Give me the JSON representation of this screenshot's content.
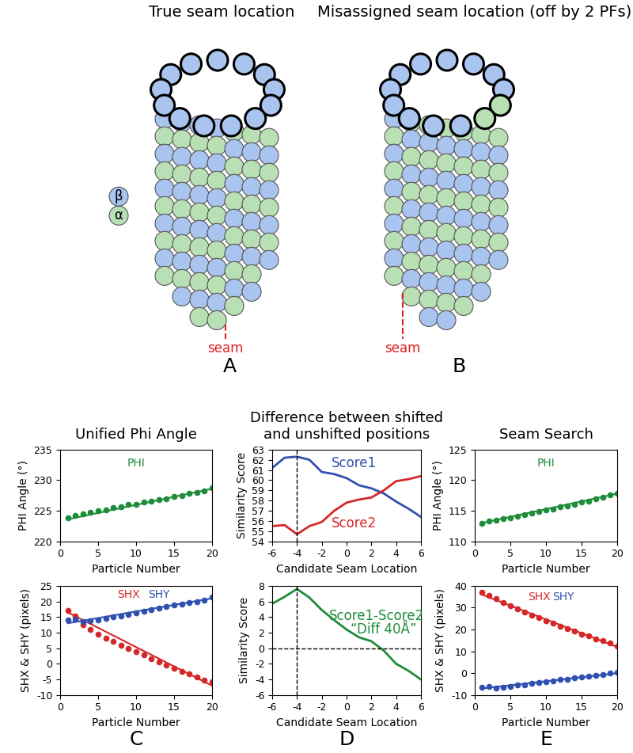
{
  "diagram": {
    "panels": [
      {
        "title": "True seam location",
        "seam_label": "seam",
        "letter": "A"
      },
      {
        "title": "Misassigned seam location (off by 2 PFs)",
        "seam_label": "seam",
        "letter": "B"
      }
    ],
    "subunit_key": [
      "β",
      "α"
    ]
  },
  "chart_data": [
    {
      "type": "scatter",
      "title": "Unified Phi Angle",
      "xlabel": "Particle Number",
      "ylabel": "PHI Angle (°)",
      "x": [
        1,
        2,
        3,
        4,
        5,
        6,
        7,
        8,
        9,
        10,
        11,
        12,
        13,
        14,
        15,
        16,
        17,
        18,
        19,
        20
      ],
      "series": [
        {
          "name": "PHI",
          "color": "#1e8c3a",
          "marker": "o",
          "values": [
            223.8,
            224.3,
            224.5,
            224.8,
            225.0,
            225.2,
            225.5,
            225.7,
            226.0,
            226.1,
            226.4,
            226.6,
            226.8,
            227.0,
            227.3,
            227.5,
            227.8,
            228.0,
            228.3,
            228.7
          ],
          "fit": {
            "x": [
              1,
              20
            ],
            "values": [
              223.6,
              228.6
            ]
          }
        }
      ],
      "xlim": [
        0,
        20
      ],
      "xticks": [
        0,
        5,
        10,
        15,
        20
      ],
      "ylim": [
        220,
        235
      ],
      "yticks": [
        220,
        225,
        230,
        235
      ]
    },
    {
      "type": "scatter",
      "xlabel": "Particle Number",
      "ylabel": "SHX & SHY (pixels)",
      "letter": "C",
      "x": [
        1,
        2,
        3,
        4,
        5,
        6,
        7,
        8,
        9,
        10,
        11,
        12,
        13,
        14,
        15,
        16,
        17,
        18,
        19,
        20
      ],
      "series": [
        {
          "name": "SHX",
          "color": "#d62728",
          "marker": "o",
          "values": [
            17.2,
            15.2,
            12.5,
            11.0,
            9.5,
            8.2,
            7.3,
            6.0,
            4.8,
            3.8,
            2.8,
            1.7,
            0.5,
            -0.5,
            -1.5,
            -2.5,
            -3.3,
            -4.2,
            -5.3,
            -5.8
          ],
          "fit": {
            "x": [
              1,
              20
            ],
            "values": [
              16.5,
              -7.0
            ]
          }
        },
        {
          "name": "SHY",
          "color": "#3050b0",
          "marker": "o",
          "values": [
            14.0,
            14.3,
            13.5,
            13.7,
            14.0,
            14.5,
            15.0,
            15.3,
            15.8,
            16.3,
            16.8,
            17.3,
            17.8,
            18.3,
            18.8,
            19.2,
            19.7,
            20.0,
            20.5,
            21.3
          ],
          "fit": {
            "x": [
              1,
              20
            ],
            "values": [
              13.0,
              21.0
            ]
          }
        }
      ],
      "xlim": [
        0,
        20
      ],
      "xticks": [
        0,
        5,
        10,
        15,
        20
      ],
      "ylim": [
        -10,
        25
      ],
      "yticks": [
        -10,
        -5,
        0,
        5,
        10,
        15,
        20,
        25
      ]
    },
    {
      "type": "line",
      "title": "Difference between shifted\nand unshifted positions",
      "xlabel": "Candidate Seam Location",
      "ylabel": "Similarity Score",
      "x": [
        -6,
        -5,
        -4,
        -3,
        -2,
        -1,
        0,
        1,
        2,
        3,
        4,
        5,
        6
      ],
      "series": [
        {
          "name": "Score1",
          "color": "#3050b0",
          "line_style": "solid",
          "values": [
            61.2,
            62.2,
            62.3,
            62.0,
            60.8,
            60.6,
            60.2,
            59.5,
            59.2,
            58.7,
            57.9,
            57.2,
            56.4
          ]
        },
        {
          "name": "Score2",
          "color": "#d62728",
          "line_style": "solid",
          "values": [
            55.5,
            55.6,
            54.7,
            55.5,
            55.9,
            57.0,
            57.8,
            58.1,
            58.3,
            59.0,
            59.9,
            60.1,
            60.4
          ]
        }
      ],
      "vlines": [
        -4
      ],
      "xlim": [
        -6,
        6
      ],
      "xticks": [
        -6,
        -4,
        -2,
        0,
        2,
        4,
        6
      ],
      "ylim": [
        54,
        63
      ],
      "yticks": [
        54,
        55,
        56,
        57,
        58,
        59,
        60,
        61,
        62,
        63
      ]
    },
    {
      "type": "line",
      "xlabel": "Candidate Seam Location",
      "ylabel": "Similarity Score",
      "letter": "D",
      "x": [
        -6,
        -5,
        -4,
        -3,
        -2,
        -1,
        0,
        1,
        2,
        3,
        4,
        5,
        6
      ],
      "series": [
        {
          "name": "Score1-Score2",
          "color": "#1e8c3a",
          "line_style": "solid",
          "values": [
            5.7,
            6.6,
            7.6,
            6.5,
            4.9,
            3.6,
            2.4,
            1.4,
            0.9,
            -0.3,
            -2.0,
            -2.9,
            -4.0
          ]
        }
      ],
      "annotations": [
        "“Diff 40Å”"
      ],
      "vlines": [
        -4
      ],
      "hlines": [
        0
      ],
      "xlim": [
        -6,
        6
      ],
      "xticks": [
        -6,
        -4,
        -2,
        0,
        2,
        4,
        6
      ],
      "ylim": [
        -6,
        8
      ],
      "yticks": [
        -6,
        -4,
        -2,
        0,
        2,
        4,
        6,
        8
      ]
    },
    {
      "type": "scatter",
      "title": "Seam Search",
      "xlabel": "Particle Number",
      "ylabel": "PHI Angle (°)",
      "x": [
        1,
        2,
        3,
        4,
        5,
        6,
        7,
        8,
        9,
        10,
        11,
        12,
        13,
        14,
        15,
        16,
        17,
        18,
        19,
        20
      ],
      "series": [
        {
          "name": "PHI",
          "color": "#1e8c3a",
          "marker": "o",
          "values": [
            112.9,
            113.3,
            113.5,
            113.7,
            113.9,
            114.1,
            114.4,
            114.6,
            114.9,
            115.1,
            115.3,
            115.6,
            115.8,
            116.1,
            116.4,
            116.6,
            116.9,
            117.2,
            117.6,
            117.9
          ],
          "fit": {
            "x": [
              1,
              20
            ],
            "values": [
              113.0,
              117.8
            ]
          }
        }
      ],
      "xlim": [
        0,
        20
      ],
      "xticks": [
        0,
        5,
        10,
        15,
        20
      ],
      "ylim": [
        110,
        125
      ],
      "yticks": [
        110,
        115,
        120,
        125
      ]
    },
    {
      "type": "scatter",
      "xlabel": "Particle Number",
      "ylabel": "SHX & SHY (pixels)",
      "letter": "E",
      "x": [
        1,
        2,
        3,
        4,
        5,
        6,
        7,
        8,
        9,
        10,
        11,
        12,
        13,
        14,
        15,
        16,
        17,
        18,
        19,
        20
      ],
      "series": [
        {
          "name": "SHX",
          "color": "#d62728",
          "marker": "o",
          "values": [
            37.0,
            35.5,
            34.0,
            32.5,
            30.8,
            29.5,
            28.0,
            26.5,
            25.3,
            24.0,
            22.8,
            21.5,
            20.3,
            19.2,
            18.0,
            17.0,
            15.8,
            14.8,
            13.7,
            12.5
          ],
          "fit": {
            "x": [
              1,
              20
            ],
            "values": [
              36.0,
              12.0
            ]
          }
        },
        {
          "name": "SHY",
          "color": "#3050b0",
          "marker": "o",
          "values": [
            -6.5,
            -6.0,
            -7.0,
            -6.5,
            -6.0,
            -5.5,
            -5.2,
            -4.8,
            -4.2,
            -4.0,
            -3.5,
            -3.0,
            -2.7,
            -2.2,
            -1.8,
            -1.3,
            -1.0,
            -0.5,
            0.0,
            0.5
          ],
          "fit": {
            "x": [
              1,
              20
            ],
            "values": [
              -7.0,
              0.0
            ]
          }
        }
      ],
      "xlim": [
        0,
        20
      ],
      "xticks": [
        0,
        5,
        10,
        15,
        20
      ],
      "ylim": [
        -10,
        40
      ],
      "yticks": [
        -10,
        0,
        10,
        20,
        30,
        40
      ]
    }
  ]
}
